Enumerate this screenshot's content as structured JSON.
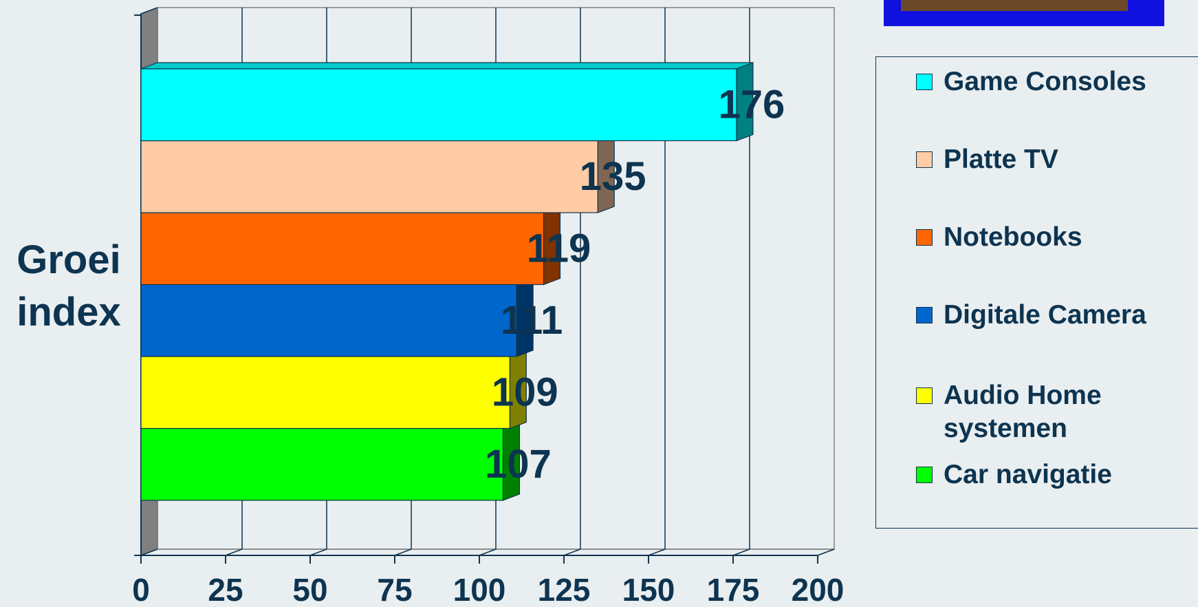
{
  "chart_data": {
    "type": "bar",
    "orientation": "horizontal",
    "y_axis_label": "Groei index",
    "categories": [
      "Game Consoles",
      "Platte TV",
      "Notebooks",
      "Digitale Camera",
      "Audio Home systemen",
      "Car navigatie"
    ],
    "values": [
      176,
      135,
      119,
      111,
      109,
      107
    ],
    "colors": [
      "#00ffff",
      "#ffcca6",
      "#ff6600",
      "#0066cc",
      "#ffff00",
      "#00ff00"
    ],
    "xlim": [
      0,
      200
    ],
    "xticks": [
      0,
      25,
      50,
      75,
      100,
      125,
      150,
      175,
      200
    ],
    "grid": true,
    "legend": "right"
  }
}
